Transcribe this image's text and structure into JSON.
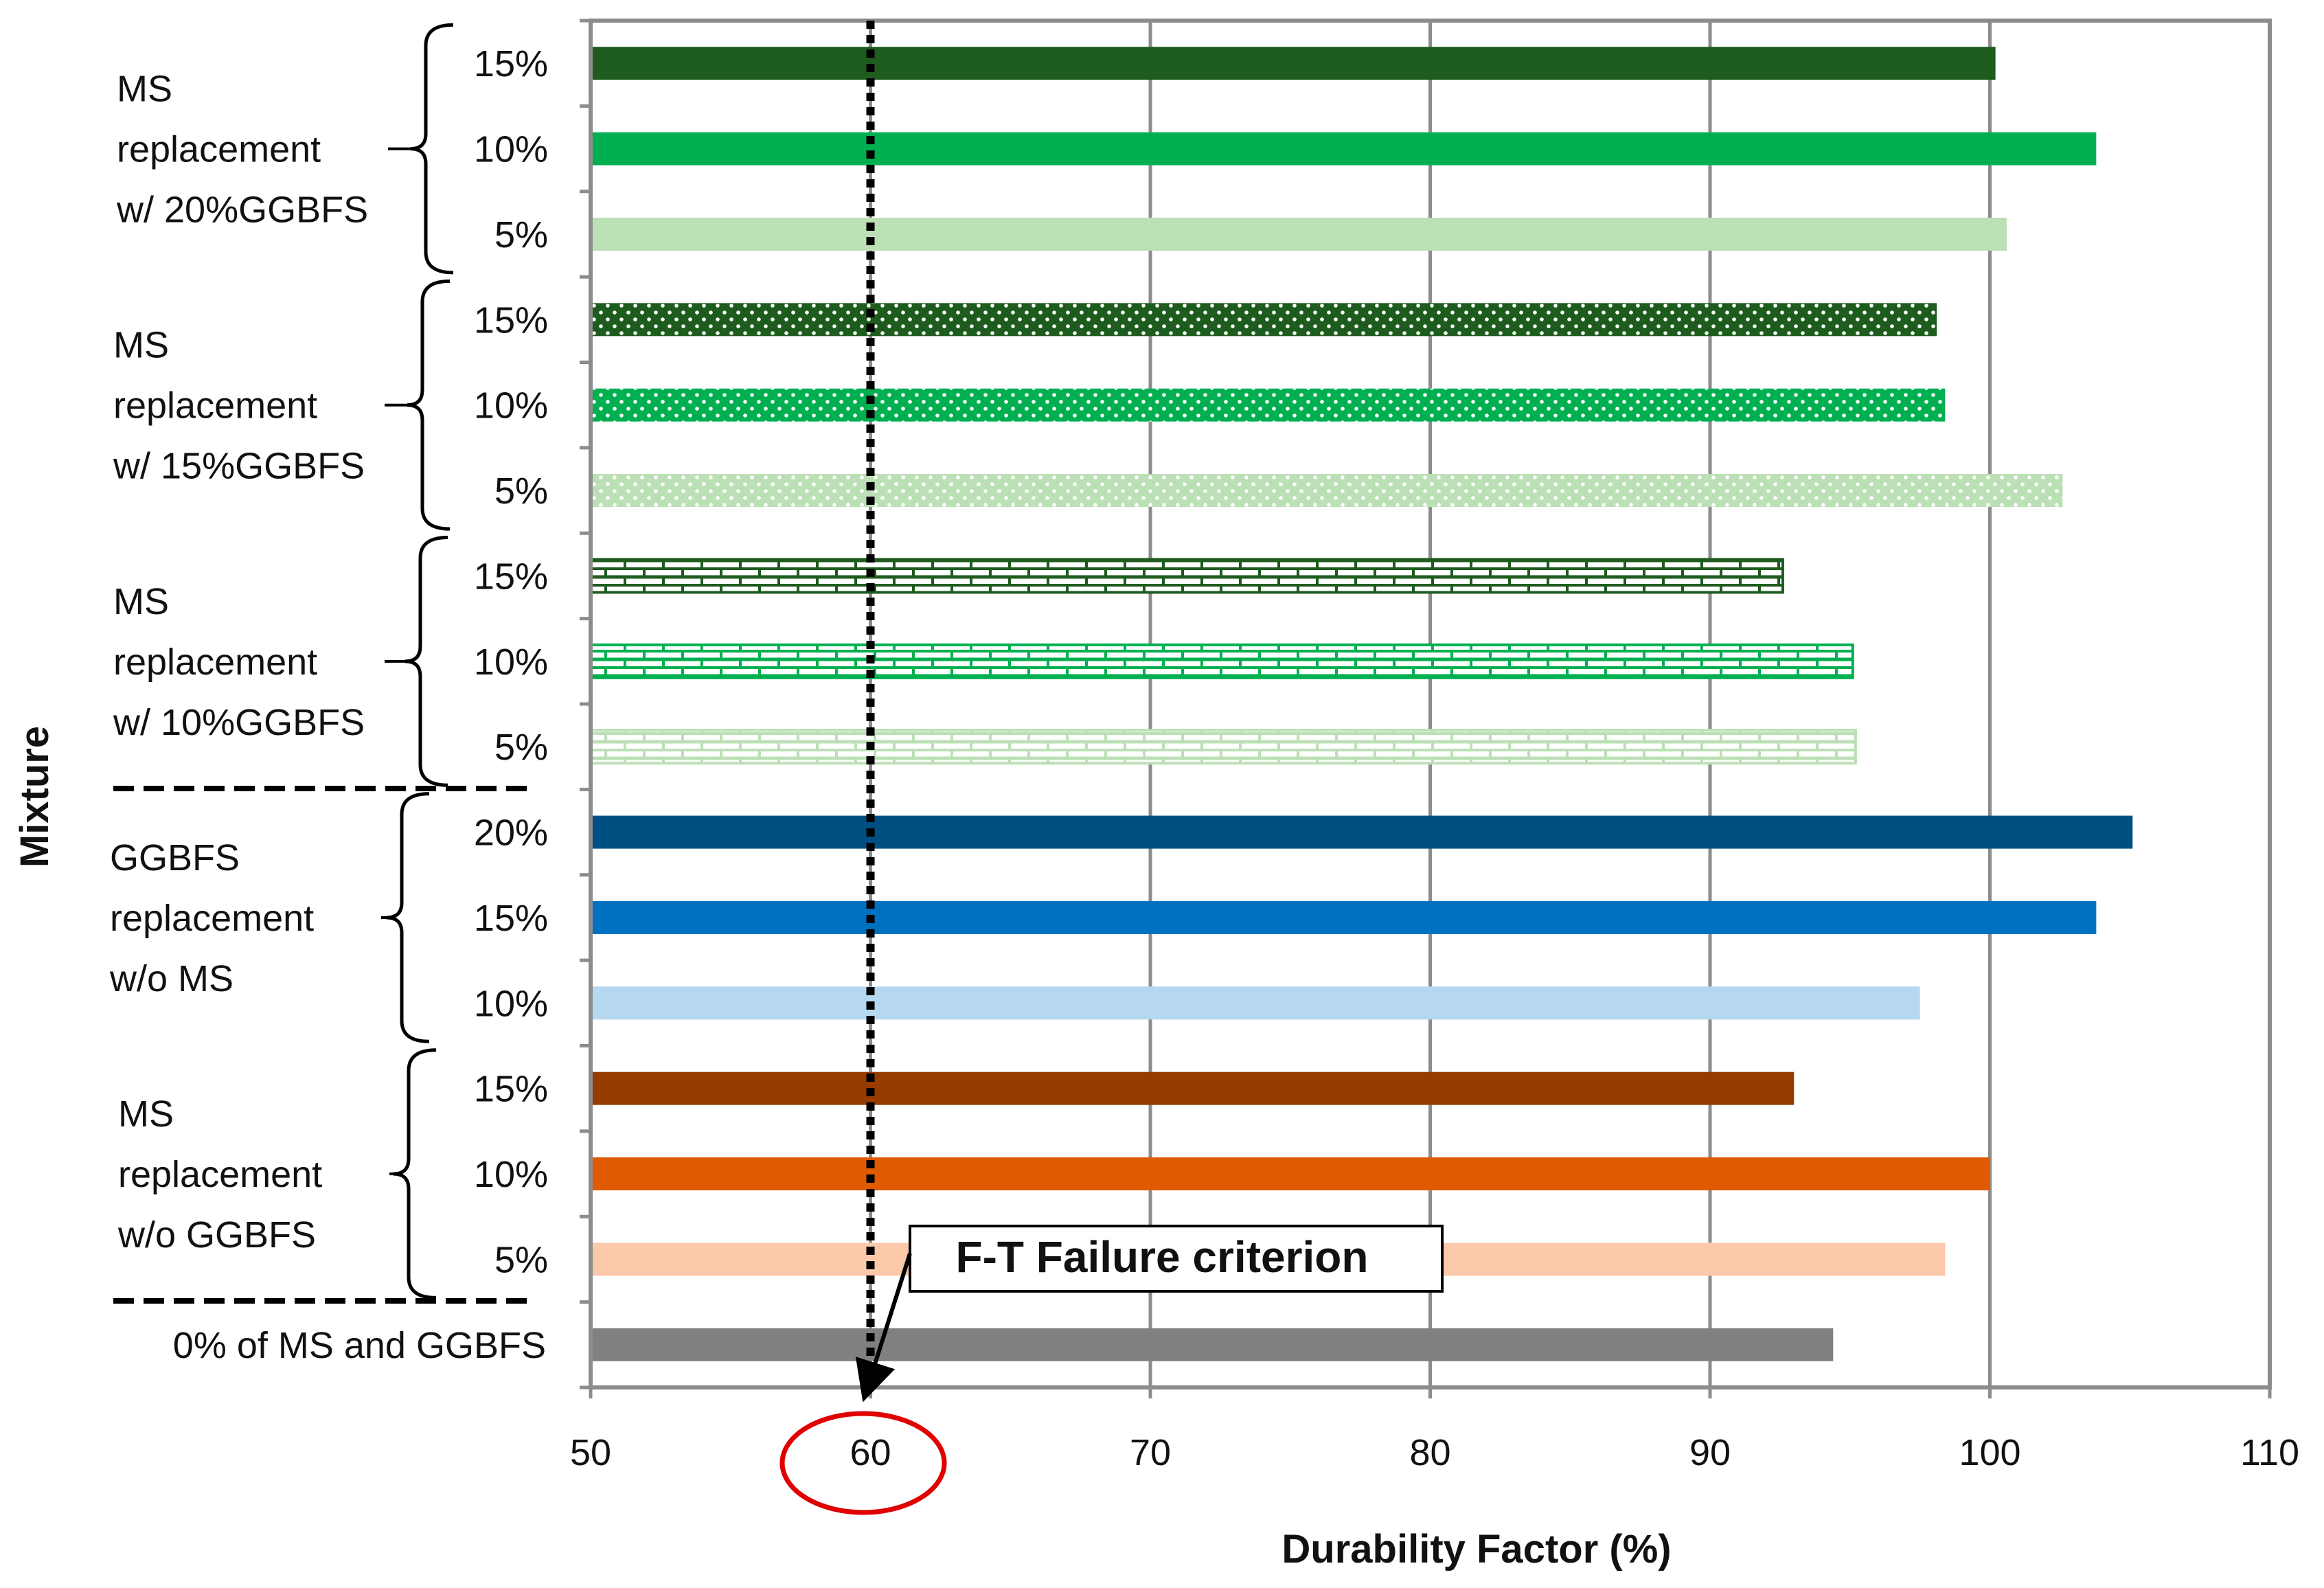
{
  "chart_data": {
    "type": "bar",
    "orientation": "horizontal",
    "xlabel": "Durability Factor (%)",
    "ylabel": "Mixture",
    "xlim": [
      50,
      110
    ],
    "xticks": [
      50,
      60,
      70,
      80,
      90,
      100,
      110
    ],
    "grid": "vertical gridlines",
    "bars": [
      {
        "group": "MS replacement w/ 20%GGBFS",
        "label": "15%",
        "value": 100.2,
        "color": "#1e5c1e",
        "pattern": "solid"
      },
      {
        "group": "MS replacement w/ 20%GGBFS",
        "label": "10%",
        "value": 103.8,
        "color": "#00b050",
        "pattern": "solid"
      },
      {
        "group": "MS replacement w/ 20%GGBFS",
        "label": "5%",
        "value": 100.6,
        "color": "#bce0b5",
        "pattern": "solid"
      },
      {
        "group": "MS replacement w/ 15%GGBFS",
        "label": "15%",
        "value": 98.1,
        "color": "#1e5c1e",
        "pattern": "dots"
      },
      {
        "group": "MS replacement w/ 15%GGBFS",
        "label": "10%",
        "value": 98.4,
        "color": "#00b050",
        "pattern": "dots"
      },
      {
        "group": "MS replacement w/ 15%GGBFS",
        "label": "5%",
        "value": 102.6,
        "color": "#bce0b5",
        "pattern": "dots"
      },
      {
        "group": "MS replacement w/ 10%GGBFS",
        "label": "15%",
        "value": 92.6,
        "color": "#1e5c1e",
        "pattern": "bricks"
      },
      {
        "group": "MS replacement w/ 10%GGBFS",
        "label": "10%",
        "value": 95.1,
        "color": "#00b050",
        "pattern": "bricks"
      },
      {
        "group": "MS replacement w/ 10%GGBFS",
        "label": "5%",
        "value": 95.2,
        "color": "#bce0b5",
        "pattern": "bricks"
      },
      {
        "group": "GGBFS replacement w/o MS",
        "label": "20%",
        "value": 105.1,
        "color": "#004f82",
        "pattern": "solid"
      },
      {
        "group": "GGBFS replacement w/o MS",
        "label": "15%",
        "value": 103.8,
        "color": "#0070c0",
        "pattern": "solid"
      },
      {
        "group": "GGBFS replacement w/o MS",
        "label": "10%",
        "value": 97.5,
        "color": "#b5d8f0",
        "pattern": "solid"
      },
      {
        "group": "MS replacement w/o GGBFS",
        "label": "15%",
        "value": 93.0,
        "color": "#963c00",
        "pattern": "solid"
      },
      {
        "group": "MS replacement w/o GGBFS",
        "label": "10%",
        "value": 100.0,
        "color": "#e05a00",
        "pattern": "solid"
      },
      {
        "group": "MS replacement w/o GGBFS",
        "label": "5%",
        "value": 98.4,
        "color": "#fbc8aa",
        "pattern": "solid"
      },
      {
        "group": "0% of MS and GGBFS",
        "label": "0% of MS and GGBFS",
        "value": 94.4,
        "color": "#808080",
        "pattern": "solid"
      }
    ],
    "group_labels": [
      {
        "lines": [
          "MS",
          "replacement",
          "w/ 20%GGBFS"
        ]
      },
      {
        "lines": [
          "MS",
          "replacement",
          "w/ 15%GGBFS"
        ]
      },
      {
        "lines": [
          "MS",
          "replacement",
          "w/ 10%GGBFS"
        ]
      },
      {
        "lines": [
          "GGBFS",
          "replacement",
          "w/o MS"
        ]
      },
      {
        "lines": [
          "MS",
          "replacement",
          "w/o GGBFS"
        ]
      }
    ],
    "threshold": {
      "value": 60,
      "label": "F-T Failure criterion"
    }
  }
}
